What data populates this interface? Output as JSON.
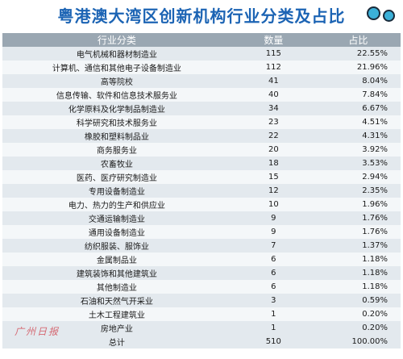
{
  "chart_data": {
    "type": "table",
    "title": "粤港澳大湾区创新机构行业分类及占比",
    "columns": [
      "行业分类",
      "数量",
      "占比"
    ],
    "rows": [
      {
        "category": "电气机械和器材制造业",
        "count": "115",
        "share": "22.55%"
      },
      {
        "category": "计算机、通信和其他电子设备制造业",
        "count": "112",
        "share": "21.96%"
      },
      {
        "category": "高等院校",
        "count": "41",
        "share": "8.04%"
      },
      {
        "category": "信息传输、软件和信息技术服务业",
        "count": "40",
        "share": "7.84%"
      },
      {
        "category": "化学原料及化学制品制造业",
        "count": "34",
        "share": "6.67%"
      },
      {
        "category": "科学研究和技术服务业",
        "count": "23",
        "share": "4.51%"
      },
      {
        "category": "橡胶和塑料制品业",
        "count": "22",
        "share": "4.31%"
      },
      {
        "category": "商务服务业",
        "count": "20",
        "share": "3.92%"
      },
      {
        "category": "农畜牧业",
        "count": "18",
        "share": "3.53%"
      },
      {
        "category": "医药、医疗研究制造业",
        "count": "15",
        "share": "2.94%"
      },
      {
        "category": "专用设备制造业",
        "count": "12",
        "share": "2.35%"
      },
      {
        "category": "电力、热力的生产和供应业",
        "count": "10",
        "share": "1.96%"
      },
      {
        "category": "交通运输制造业",
        "count": "9",
        "share": "1.76%"
      },
      {
        "category": "通用设备制造业",
        "count": "9",
        "share": "1.76%"
      },
      {
        "category": "纺织服装、服饰业",
        "count": "7",
        "share": "1.37%"
      },
      {
        "category": "金属制品业",
        "count": "6",
        "share": "1.18%"
      },
      {
        "category": "建筑装饰和其他建筑业",
        "count": "6",
        "share": "1.18%"
      },
      {
        "category": "其他制造业",
        "count": "6",
        "share": "1.18%"
      },
      {
        "category": "石油和天然气开采业",
        "count": "3",
        "share": "0.59%"
      },
      {
        "category": "土木工程建筑业",
        "count": "1",
        "share": "0.20%"
      },
      {
        "category": "房地产业",
        "count": "1",
        "share": "0.20%"
      }
    ],
    "total": {
      "label": "总计",
      "count": "510",
      "share": "100.00%"
    }
  },
  "watermark": "广州日报",
  "colors": {
    "title": "#1c64b4",
    "header_bg": "#9aa7b2",
    "row_odd": "#e3e9ee",
    "row_even": "#f4f7f9"
  }
}
